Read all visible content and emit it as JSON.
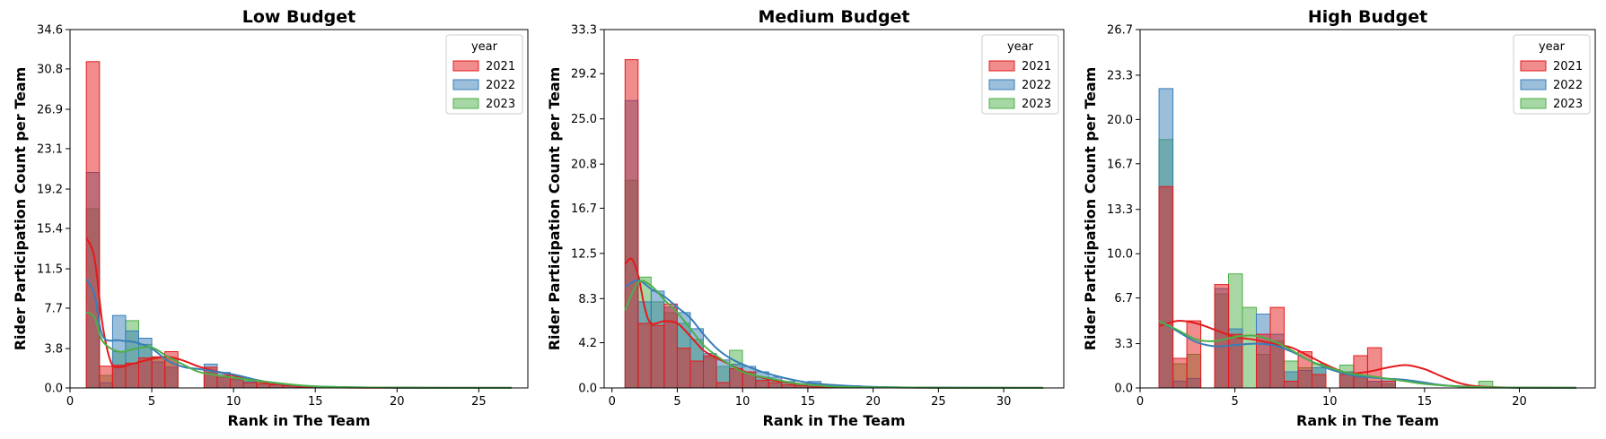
{
  "colors": {
    "2021": "#e41a1c",
    "2022": "#377eb8",
    "2023": "#4daf4a"
  },
  "chart_data": [
    {
      "type": "histogram",
      "title": "Low Budget",
      "xlabel": "Rank in The Team",
      "ylabel": "Rider Participation Count per Team",
      "xlim": [
        0,
        28
      ],
      "ylim": [
        0,
        34.6
      ],
      "xticks": [
        0,
        5,
        10,
        15,
        20,
        25
      ],
      "yticks": [
        "0.0",
        "3.8",
        "7.7",
        "11.5",
        "15.4",
        "19.2",
        "23.1",
        "26.9",
        "30.8",
        "34.6"
      ],
      "bin_width": 0.8,
      "bin_start": 1,
      "legend": {
        "title": "year",
        "entries": [
          "2021",
          "2022",
          "2023"
        ],
        "position": "top-right"
      },
      "series": [
        {
          "name": "2021",
          "values": [
            31.5,
            2.1,
            2.2,
            2.4,
            2.9,
            3.0,
            3.5,
            0,
            0,
            2.0,
            1.2,
            1.0,
            0.5,
            0.4,
            0.3,
            0.2,
            0.1,
            0.1,
            0.05,
            0.05,
            0.05,
            0.03,
            0.03,
            0.03,
            0.03,
            0.03,
            0.03,
            0.03,
            0.02,
            0.02,
            0.02,
            0.02
          ]
        },
        {
          "name": "2022",
          "values": [
            20.8,
            0.5,
            7.0,
            5.5,
            4.8,
            2.5,
            2.0,
            0,
            0,
            2.3,
            1.5,
            0.8,
            0.6,
            0.4,
            0.3,
            0.2,
            0.1,
            0.1,
            0.05,
            0.05,
            0.05,
            0.03,
            0.03,
            0.03,
            0.03,
            0.03,
            0.03,
            0.03,
            0.02,
            0.02,
            0.02,
            0.02
          ]
        },
        {
          "name": "2023",
          "values": [
            17.3,
            1.2,
            3.5,
            6.5,
            4.2,
            3.0,
            2.8,
            0,
            0,
            1.5,
            1.0,
            0.9,
            0.7,
            0.5,
            0.3,
            0.2,
            0.1,
            0.05,
            0.05,
            0.05,
            0.03,
            0.03,
            0.03,
            0.03,
            0.03,
            0.03,
            0.03,
            0.03,
            0.02,
            0.02,
            0.02,
            0.02
          ]
        }
      ],
      "kde": [
        {
          "name": "2021",
          "x": [
            1,
            1.5,
            2,
            2.5,
            3,
            3.5,
            4,
            5,
            6,
            7,
            8,
            10,
            12,
            15,
            20,
            27
          ],
          "y": [
            14.5,
            12.5,
            6.0,
            2.5,
            2.0,
            2.2,
            2.4,
            2.8,
            3.0,
            2.6,
            2.0,
            1.2,
            0.5,
            0.1,
            0.02,
            0.01
          ]
        },
        {
          "name": "2022",
          "x": [
            1,
            1.5,
            2,
            3,
            4,
            5,
            6,
            7,
            8,
            10,
            12,
            15,
            20,
            27
          ],
          "y": [
            10.5,
            9.0,
            5.0,
            4.6,
            4.4,
            3.8,
            2.6,
            2.0,
            1.8,
            1.3,
            0.6,
            0.15,
            0.03,
            0.01
          ]
        },
        {
          "name": "2023",
          "x": [
            1,
            1.5,
            2,
            3,
            4,
            5,
            6,
            7,
            8,
            10,
            12,
            15,
            20,
            27
          ],
          "y": [
            7.3,
            6.8,
            4.5,
            3.5,
            3.8,
            3.9,
            3.0,
            2.2,
            1.5,
            1.0,
            0.6,
            0.15,
            0.03,
            0.01
          ]
        }
      ]
    },
    {
      "type": "histogram",
      "title": "Medium Budget",
      "xlabel": "Rank in The Team",
      "ylabel": "Rider Participation Count per Team",
      "xlim": [
        -0.6,
        34.6
      ],
      "ylim": [
        0,
        33.3
      ],
      "xticks": [
        0,
        5,
        10,
        15,
        20,
        25,
        30
      ],
      "yticks": [
        "0.0",
        "4.2",
        "8.3",
        "12.5",
        "16.7",
        "20.8",
        "25.0",
        "29.2",
        "33.3"
      ],
      "bin_width": 1.0,
      "bin_start": 1,
      "legend": {
        "title": "year",
        "entries": [
          "2021",
          "2022",
          "2023"
        ],
        "position": "top-right"
      },
      "series": [
        {
          "name": "2021",
          "values": [
            30.5,
            6.0,
            5.8,
            7.8,
            3.7,
            2.5,
            3.0,
            0.5,
            1.8,
            1.5,
            0.7,
            0.5,
            0.3,
            0.2,
            0.1,
            0.1,
            0.05,
            0.05,
            0.03,
            0.03,
            0.03,
            0.03,
            0.03,
            0.03,
            0.03,
            0.03,
            0.02,
            0.02,
            0.02,
            0.02,
            0.02,
            0.02
          ]
        },
        {
          "name": "2022",
          "values": [
            26.7,
            8.0,
            9.0,
            7.5,
            7.0,
            5.5,
            3.2,
            2.6,
            2.2,
            2.0,
            1.5,
            1.0,
            0.6,
            0.4,
            0.6,
            0.3,
            0.2,
            0.2,
            0.1,
            0.1,
            0.1,
            0.05,
            0.05,
            0.05,
            0.03,
            0.03,
            0.03,
            0.03,
            0.02,
            0.02,
            0.02,
            0.02
          ]
        },
        {
          "name": "2023",
          "values": [
            19.3,
            10.3,
            8.0,
            7.0,
            6.0,
            4.5,
            3.0,
            2.0,
            3.5,
            1.5,
            1.0,
            0.7,
            0.5,
            0.3,
            0.2,
            0.1,
            0.05,
            0.05,
            0.03,
            0.03,
            0.03,
            0.03,
            0.03,
            0.03,
            0.03,
            0.03,
            0.02,
            0.02,
            0.02,
            0.02,
            0.02,
            0.02
          ]
        }
      ],
      "kde": [
        {
          "name": "2021",
          "x": [
            1,
            1.5,
            2,
            2.5,
            3,
            4,
            5,
            6,
            7,
            8,
            9,
            10,
            12,
            15,
            20,
            33
          ],
          "y": [
            11.5,
            12.0,
            10.5,
            7.5,
            6.0,
            6.2,
            6.0,
            4.8,
            3.5,
            2.8,
            2.2,
            1.6,
            0.8,
            0.3,
            0.05,
            0.01
          ]
        },
        {
          "name": "2022",
          "x": [
            1,
            2,
            3,
            4,
            5,
            6,
            7,
            8,
            9,
            10,
            12,
            15,
            18,
            22,
            33
          ],
          "y": [
            9.4,
            10.0,
            9.2,
            8.5,
            7.5,
            6.5,
            5.0,
            3.7,
            2.8,
            2.2,
            1.3,
            0.5,
            0.2,
            0.05,
            0.01
          ]
        },
        {
          "name": "2023",
          "x": [
            1,
            2,
            3,
            4,
            5,
            6,
            7,
            8,
            9,
            10,
            12,
            15,
            20,
            33
          ],
          "y": [
            7.2,
            9.8,
            9.5,
            8.2,
            7.0,
            5.5,
            4.0,
            3.0,
            2.2,
            1.5,
            0.9,
            0.3,
            0.05,
            0.01
          ]
        }
      ]
    },
    {
      "type": "histogram",
      "title": "High Budget",
      "xlabel": "Rank in The Team",
      "ylabel": "Rider Participation Count per Team",
      "xlim": [
        0,
        24
      ],
      "ylim": [
        0,
        26.7
      ],
      "xticks": [
        0,
        5,
        10,
        15,
        20
      ],
      "yticks": [
        "0.0",
        "3.3",
        "6.7",
        "10.0",
        "13.3",
        "16.7",
        "20.0",
        "23.3",
        "26.7"
      ],
      "bin_width": 0.733,
      "bin_start": 1,
      "legend": {
        "title": "year",
        "entries": [
          "2021",
          "2022",
          "2023"
        ],
        "position": "top-right"
      },
      "series": [
        {
          "name": "2021",
          "values": [
            15.0,
            2.2,
            5.0,
            0,
            7.7,
            4.0,
            0,
            4.0,
            6.0,
            0.5,
            2.7,
            1.0,
            0,
            1.0,
            2.4,
            3.0,
            0.5,
            0,
            0,
            0,
            0,
            0,
            0,
            0
          ]
        },
        {
          "name": "2022",
          "values": [
            22.3,
            0.5,
            0.7,
            0,
            7.4,
            4.4,
            0,
            5.5,
            4.0,
            1.2,
            1.3,
            1.5,
            0,
            1.2,
            0.8,
            0.5,
            0.7,
            0,
            0,
            0,
            0,
            0,
            0,
            0
          ]
        },
        {
          "name": "2023",
          "values": [
            18.5,
            1.8,
            2.5,
            0,
            7.0,
            8.5,
            6.0,
            2.5,
            3.5,
            2.0,
            1.5,
            1.8,
            0,
            1.7,
            0.8,
            0.5,
            0.3,
            0,
            0,
            0,
            0,
            0,
            0,
            0.5
          ]
        }
      ],
      "kde": [
        {
          "name": "2021",
          "x": [
            1,
            2,
            3,
            4,
            5,
            6,
            7,
            8,
            9,
            10,
            11,
            12,
            13,
            14,
            15,
            16,
            17,
            18,
            20,
            23
          ],
          "y": [
            4.6,
            5.0,
            4.8,
            4.3,
            3.8,
            3.6,
            3.3,
            3.0,
            2.3,
            1.6,
            1.1,
            1.2,
            1.5,
            1.7,
            1.4,
            0.8,
            0.3,
            0.1,
            0.02,
            0.01
          ]
        },
        {
          "name": "2022",
          "x": [
            1,
            2,
            3,
            4,
            5,
            6,
            7,
            8,
            9,
            10,
            11,
            12,
            13,
            14,
            15,
            16,
            18,
            20,
            23
          ],
          "y": [
            5.0,
            4.2,
            3.4,
            3.1,
            3.2,
            3.3,
            3.2,
            2.7,
            2.0,
            1.4,
            1.0,
            0.8,
            0.7,
            0.6,
            0.4,
            0.2,
            0.05,
            0.02,
            0.01
          ]
        },
        {
          "name": "2023",
          "x": [
            1,
            2,
            3,
            4,
            5,
            6,
            7,
            8,
            9,
            10,
            11,
            12,
            13,
            14,
            15,
            17,
            20,
            23
          ],
          "y": [
            5.0,
            4.3,
            3.6,
            3.5,
            3.8,
            3.9,
            3.5,
            2.8,
            2.0,
            1.5,
            1.1,
            0.9,
            0.7,
            0.5,
            0.3,
            0.1,
            0.03,
            0.02
          ]
        }
      ]
    }
  ]
}
